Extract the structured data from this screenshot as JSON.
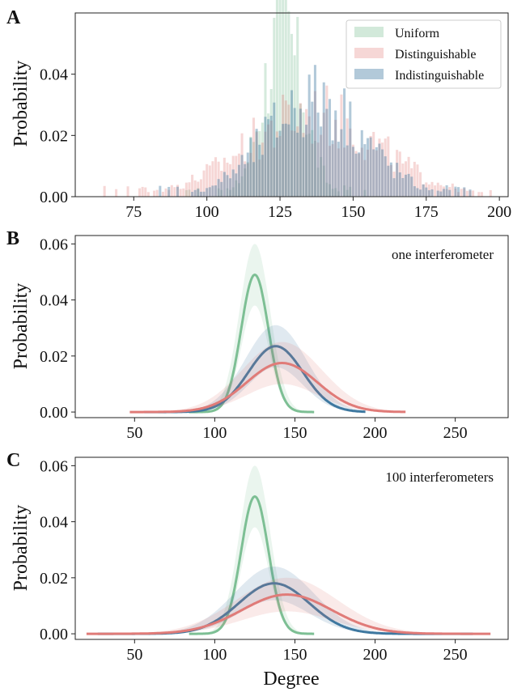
{
  "colors": {
    "uniform": "#7dbf94",
    "distinguishable": "#e07b78",
    "indistinguishable": "#3e78a0"
  },
  "panel_a": {
    "letter": "A",
    "ylabel": "Probability",
    "legend": [
      "Uniform",
      "Distinguishable",
      "Indistinguishable"
    ]
  },
  "panel_b": {
    "letter": "B",
    "ylabel": "Probability",
    "annotation": "one interferometer"
  },
  "panel_c": {
    "letter": "C",
    "ylabel": "Probability",
    "annotation": "100 interferometers",
    "xlabel": "Degree"
  },
  "chart_data": [
    {
      "type": "bar",
      "panel": "A",
      "subtype": "overlaid histograms",
      "ylabel": "Probability",
      "xlim": [
        55,
        203
      ],
      "ylim": [
        0,
        0.06
      ],
      "xticks": [
        75,
        100,
        125,
        150,
        175,
        200
      ],
      "yticks": [
        0.0,
        0.02,
        0.04
      ],
      "legend_position": "top-right",
      "series": [
        {
          "name": "Uniform",
          "color": "#7dbf94",
          "mean": 126,
          "sd": 7,
          "peak": 0.057,
          "xmin": 93,
          "xmax": 158
        },
        {
          "name": "Distinguishable",
          "color": "#e07b78",
          "mean": 136,
          "sd": 23,
          "peak": 0.028,
          "xmin": 62,
          "xmax": 198
        },
        {
          "name": "Indistinguishable",
          "color": "#3e78a0",
          "mean": 137,
          "sd": 17,
          "peak": 0.033,
          "xmin": 84,
          "xmax": 190
        }
      ]
    },
    {
      "type": "line",
      "panel": "B",
      "annotation": "one interferometer",
      "ylabel": "Probability",
      "xlim": [
        13,
        283
      ],
      "ylim": [
        -0.002,
        0.063
      ],
      "xticks": [
        50,
        100,
        150,
        200,
        250
      ],
      "yticks": [
        0.0,
        0.02,
        0.04,
        0.06
      ],
      "series": [
        {
          "name": "Uniform",
          "color": "#7dbf94",
          "mean": 125,
          "sd": 8.5,
          "peak": 0.049,
          "band_peak": 0.06,
          "x_range": [
            84,
            162
          ]
        },
        {
          "name": "Indistinguishable",
          "color": "#3e78a0",
          "mean": 138,
          "sd": 17,
          "peak": 0.0235,
          "band_peak": 0.031,
          "x_range": [
            56,
            194
          ]
        },
        {
          "name": "Distinguishable",
          "color": "#e07b78",
          "mean": 142,
          "sd": 22,
          "peak": 0.0175,
          "band_peak": 0.025,
          "x_range": [
            47,
            219
          ]
        }
      ]
    },
    {
      "type": "line",
      "panel": "C",
      "annotation": "100 interferometers",
      "xlabel": "Degree",
      "ylabel": "Probability",
      "xlim": [
        13,
        283
      ],
      "ylim": [
        -0.002,
        0.063
      ],
      "xticks": [
        50,
        100,
        150,
        200,
        250
      ],
      "yticks": [
        0.0,
        0.02,
        0.04,
        0.06
      ],
      "series": [
        {
          "name": "Uniform",
          "color": "#7dbf94",
          "mean": 125,
          "sd": 8.5,
          "peak": 0.049,
          "band_peak": 0.06,
          "x_range": [
            84,
            162
          ]
        },
        {
          "name": "Indistinguishable",
          "color": "#3e78a0",
          "mean": 137,
          "sd": 22,
          "peak": 0.018,
          "band_peak": 0.024,
          "x_range": [
            27,
            261
          ]
        },
        {
          "name": "Distinguishable",
          "color": "#e07b78",
          "mean": 145,
          "sd": 28,
          "peak": 0.014,
          "band_peak": 0.02,
          "x_range": [
            20,
            272
          ]
        }
      ]
    }
  ]
}
